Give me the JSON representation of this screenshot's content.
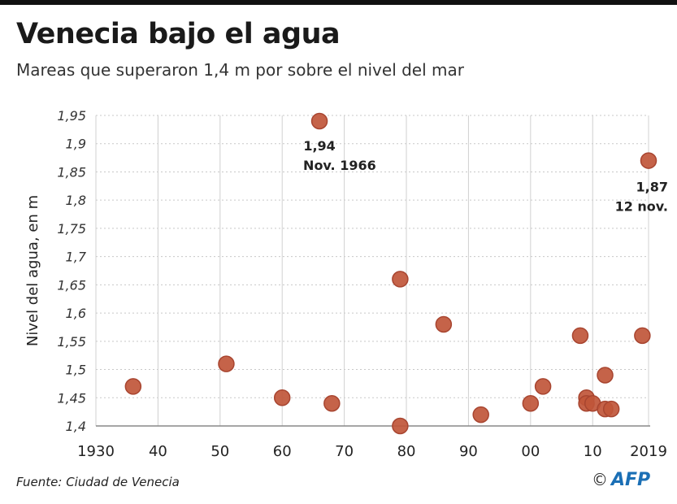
{
  "header": {
    "title": "Venecia bajo el agua",
    "subtitle": "Mareas que superaron 1,4 m por sobre el nivel del mar"
  },
  "footer": {
    "source": "Fuente: Ciudad de Venecia",
    "copyright": "©",
    "logo": "AFP"
  },
  "colors": {
    "point": "#c0563a",
    "point_edge": "#a84530",
    "grid": "#cccccc",
    "logo": "#1b6fb5"
  },
  "chart_data": {
    "type": "scatter",
    "title": "Venecia bajo el agua",
    "subtitle": "Mareas que superaron 1,4 m por sobre el nivel del mar",
    "xlabel": "",
    "ylabel": "Nivel del agua, en m",
    "xlim": [
      1930,
      2019
    ],
    "ylim": [
      1.4,
      1.95
    ],
    "grid": {
      "x": true,
      "y": true
    },
    "x_ticks": [
      {
        "value": 1930,
        "label": "1930"
      },
      {
        "value": 1940,
        "label": "40"
      },
      {
        "value": 1950,
        "label": "50"
      },
      {
        "value": 1960,
        "label": "60"
      },
      {
        "value": 1970,
        "label": "70"
      },
      {
        "value": 1980,
        "label": "80"
      },
      {
        "value": 1990,
        "label": "90"
      },
      {
        "value": 2000,
        "label": "00"
      },
      {
        "value": 2010,
        "label": "10"
      },
      {
        "value": 2019,
        "label": "2019"
      }
    ],
    "y_ticks": [
      {
        "value": 1.4,
        "label": "1,4"
      },
      {
        "value": 1.45,
        "label": "1,45"
      },
      {
        "value": 1.5,
        "label": "1,5"
      },
      {
        "value": 1.55,
        "label": "1,55"
      },
      {
        "value": 1.6,
        "label": "1,6"
      },
      {
        "value": 1.65,
        "label": "1,65"
      },
      {
        "value": 1.7,
        "label": "1,7"
      },
      {
        "value": 1.75,
        "label": "1,75"
      },
      {
        "value": 1.8,
        "label": "1,8"
      },
      {
        "value": 1.85,
        "label": "1,85"
      },
      {
        "value": 1.9,
        "label": "1,9"
      },
      {
        "value": 1.95,
        "label": "1,95"
      }
    ],
    "points": [
      {
        "x": 1936,
        "y": 1.47
      },
      {
        "x": 1951,
        "y": 1.51
      },
      {
        "x": 1960,
        "y": 1.45
      },
      {
        "x": 1966,
        "y": 1.94
      },
      {
        "x": 1968,
        "y": 1.44
      },
      {
        "x": 1979,
        "y": 1.66
      },
      {
        "x": 1979,
        "y": 1.4
      },
      {
        "x": 1986,
        "y": 1.58
      },
      {
        "x": 1992,
        "y": 1.42
      },
      {
        "x": 2000,
        "y": 1.44
      },
      {
        "x": 2002,
        "y": 1.47
      },
      {
        "x": 2008,
        "y": 1.56
      },
      {
        "x": 2009,
        "y": 1.45
      },
      {
        "x": 2009,
        "y": 1.44
      },
      {
        "x": 2010,
        "y": 1.44
      },
      {
        "x": 2012,
        "y": 1.49
      },
      {
        "x": 2012,
        "y": 1.43
      },
      {
        "x": 2013,
        "y": 1.43
      },
      {
        "x": 2018,
        "y": 1.56
      },
      {
        "x": 2019,
        "y": 1.87
      }
    ],
    "annotations": [
      {
        "x": 1966,
        "y": 1.94,
        "value": "1,94",
        "label": "Nov. 1966"
      },
      {
        "x": 2019,
        "y": 1.87,
        "value": "1,87",
        "label": "12 nov."
      }
    ]
  }
}
